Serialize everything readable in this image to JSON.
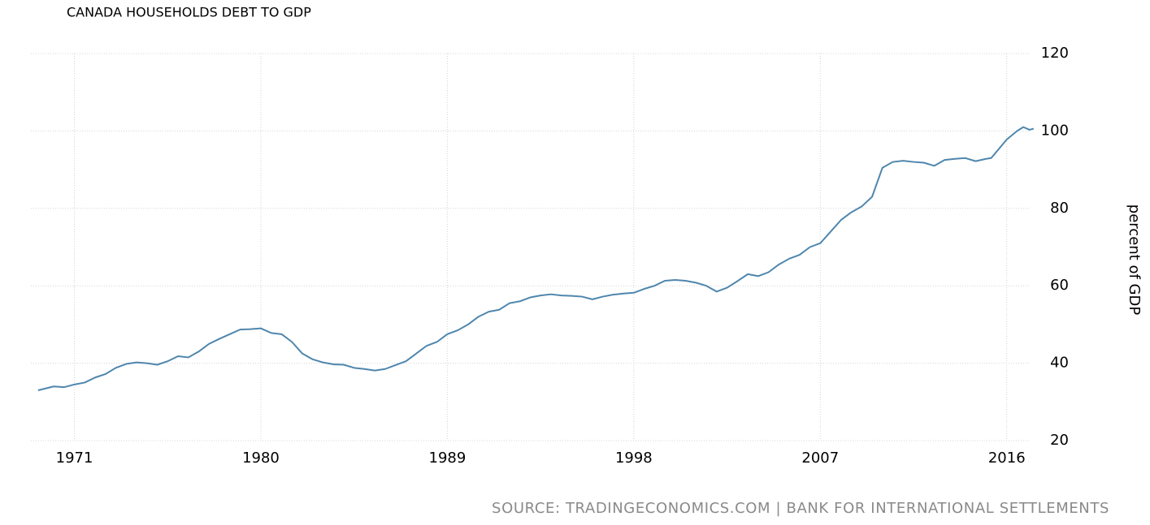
{
  "chart_data": {
    "type": "line",
    "title": "CANADA HOUSEHOLDS DEBT TO GDP",
    "y_axis_label": "percent of GDP",
    "source": "SOURCE: TRADINGECONOMICS.COM | BANK FOR INTERNATIONAL SETTLEMENTS",
    "x": [
      1969.25,
      1970,
      1970.5,
      1971,
      1971.5,
      1972,
      1972.5,
      1973,
      1973.5,
      1974,
      1974.5,
      1975,
      1975.5,
      1976,
      1976.5,
      1977,
      1977.5,
      1978,
      1978.5,
      1979,
      1979.5,
      1980,
      1980.5,
      1981,
      1981.5,
      1982,
      1982.5,
      1983,
      1983.5,
      1984,
      1984.5,
      1985,
      1985.5,
      1986,
      1986.5,
      1987,
      1987.5,
      1988,
      1988.5,
      1989,
      1989.5,
      1990,
      1990.5,
      1991,
      1991.5,
      1992,
      1992.5,
      1993,
      1993.5,
      1994,
      1994.5,
      1995,
      1995.5,
      1996,
      1996.5,
      1997,
      1997.5,
      1998,
      1998.5,
      1999,
      1999.5,
      2000,
      2000.5,
      2001,
      2001.5,
      2002,
      2002.5,
      2003,
      2003.5,
      2004,
      2004.5,
      2005,
      2005.5,
      2006,
      2006.5,
      2007,
      2007.5,
      2008,
      2008.5,
      2009,
      2009.5,
      2010,
      2010.5,
      2011,
      2011.5,
      2012,
      2012.5,
      2013,
      2013.5,
      2014,
      2014.5,
      2015,
      2015.25,
      2016,
      2016.5,
      2016.8,
      2017.1,
      2017.3
    ],
    "series": [
      {
        "color": "#4f86ad",
        "values": [
          33,
          34,
          33.8,
          34.5,
          35,
          36.3,
          37.2,
          38.8,
          39.8,
          40.2,
          40,
          39.6,
          40.5,
          41.8,
          41.5,
          43,
          45,
          46.3,
          47.5,
          48.7,
          48.8,
          49,
          47.8,
          47.5,
          45.5,
          42.5,
          41,
          40.2,
          39.7,
          39.6,
          38.8,
          38.5,
          38.1,
          38.5,
          39.5,
          40.5,
          42.5,
          44.5,
          45.5,
          47.5,
          48.5,
          50,
          52,
          53.3,
          53.8,
          55.5,
          56,
          57,
          57.5,
          57.8,
          57.5,
          57.4,
          57.2,
          56.5,
          57.2,
          57.7,
          58,
          58.2,
          59.2,
          60,
          61.3,
          61.5,
          61.3,
          60.8,
          60,
          58.5,
          59.5,
          61.2,
          63,
          62.5,
          63.5,
          65.5,
          67,
          68,
          70,
          71,
          74,
          77,
          79,
          80.5,
          83,
          90.5,
          92,
          92.3,
          92,
          91.8,
          91,
          92.5,
          92.8,
          93,
          92.2,
          92.8,
          93,
          97.8,
          100,
          101,
          100.3,
          100.6
        ]
      }
    ],
    "xlim": [
      1968.9,
      2017.5
    ],
    "xticks": [
      1971,
      1980,
      1989,
      1998,
      2007,
      2016
    ],
    "ylim": [
      20,
      120
    ],
    "yticks": [
      20,
      40,
      60,
      80,
      100,
      120
    ],
    "grid": true
  }
}
